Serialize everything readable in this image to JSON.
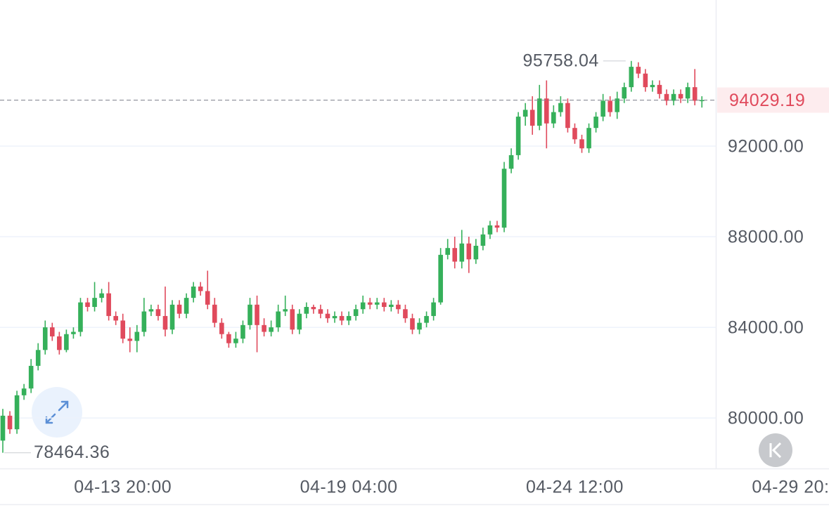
{
  "chart_data": {
    "type": "candlestick",
    "x": [
      "04-11 00:00",
      "04-11 04:00",
      "04-11 08:00",
      "04-11 12:00",
      "04-11 16:00",
      "04-11 20:00",
      "04-12 00:00",
      "04-12 04:00",
      "04-12 08:00",
      "04-12 12:00",
      "04-12 16:00",
      "04-12 20:00",
      "04-13 00:00",
      "04-13 04:00",
      "04-13 08:00",
      "04-13 12:00",
      "04-13 16:00",
      "04-13 20:00",
      "04-14 00:00",
      "04-14 04:00",
      "04-14 08:00",
      "04-14 12:00",
      "04-14 16:00",
      "04-14 20:00",
      "04-15 00:00",
      "04-15 04:00",
      "04-15 08:00",
      "04-15 12:00",
      "04-15 16:00",
      "04-15 20:00",
      "04-16 00:00",
      "04-16 04:00",
      "04-16 08:00",
      "04-16 12:00",
      "04-16 16:00",
      "04-16 20:00",
      "04-17 00:00",
      "04-17 04:00",
      "04-17 08:00",
      "04-17 12:00",
      "04-17 16:00",
      "04-17 20:00",
      "04-18 00:00",
      "04-18 04:00",
      "04-18 08:00",
      "04-18 12:00",
      "04-18 16:00",
      "04-18 20:00",
      "04-19 00:00",
      "04-19 04:00",
      "04-19 08:00",
      "04-19 12:00",
      "04-19 16:00",
      "04-19 20:00",
      "04-20 00:00",
      "04-20 04:00",
      "04-20 08:00",
      "04-20 12:00",
      "04-20 16:00",
      "04-20 20:00",
      "04-21 00:00",
      "04-21 04:00",
      "04-21 08:00",
      "04-21 12:00",
      "04-21 16:00",
      "04-21 20:00",
      "04-22 00:00",
      "04-22 04:00",
      "04-22 08:00",
      "04-22 12:00",
      "04-22 16:00",
      "04-22 20:00",
      "04-23 00:00",
      "04-23 04:00",
      "04-23 08:00",
      "04-23 12:00",
      "04-23 16:00",
      "04-23 20:00",
      "04-24 00:00",
      "04-24 04:00",
      "04-24 08:00",
      "04-24 12:00",
      "04-24 16:00",
      "04-24 20:00",
      "04-25 00:00",
      "04-25 04:00",
      "04-25 08:00",
      "04-25 12:00",
      "04-25 16:00",
      "04-25 20:00",
      "04-26 00:00",
      "04-26 04:00",
      "04-26 08:00",
      "04-26 12:00",
      "04-26 16:00",
      "04-26 20:00",
      "04-27 00:00",
      "04-27 04:00",
      "04-27 08:00",
      "04-27 12:00"
    ],
    "open": [
      79000,
      80100,
      79500,
      81000,
      81300,
      82300,
      83000,
      84000,
      83600,
      83000,
      83700,
      83800,
      85100,
      84900,
      85300,
      85500,
      84500,
      84300,
      83500,
      83400,
      83800,
      84700,
      84800,
      84500,
      83900,
      85000,
      84600,
      85300,
      85800,
      85600,
      85000,
      84200,
      83700,
      83300,
      83500,
      84100,
      85000,
      84100,
      83800,
      84000,
      84700,
      84800,
      83900,
      84600,
      84900,
      84800,
      84600,
      84400,
      84500,
      84300,
      84500,
      84800,
      85100,
      85000,
      85100,
      84900,
      85000,
      84800,
      84400,
      83900,
      84200,
      84500,
      85100,
      87200,
      87500,
      86900,
      87700,
      87000,
      87600,
      88100,
      88500,
      88400,
      91000,
      91600,
      93300,
      93600,
      92900,
      94100,
      93000,
      93500,
      93900,
      92800,
      92300,
      91900,
      92800,
      93300,
      94000,
      93500,
      94100,
      94600,
      95500,
      95200,
      94600,
      94700,
      94300,
      94000,
      94300,
      94100,
      94600,
      94000
    ],
    "high": [
      80400,
      80300,
      81200,
      81500,
      82600,
      83300,
      84300,
      84200,
      83800,
      83900,
      84000,
      85300,
      85300,
      86000,
      85700,
      86000,
      84700,
      84600,
      84000,
      84100,
      85300,
      85000,
      85000,
      85800,
      85200,
      85200,
      85500,
      86000,
      86000,
      86500,
      85300,
      84400,
      83800,
      83800,
      84300,
      85300,
      85400,
      84400,
      84300,
      85000,
      85400,
      85000,
      84800,
      85100,
      85000,
      85000,
      84800,
      84700,
      84700,
      84700,
      85000,
      85400,
      85300,
      85300,
      85300,
      85200,
      85200,
      85000,
      84600,
      84400,
      84700,
      85300,
      87500,
      87900,
      88000,
      88300,
      88000,
      87900,
      88400,
      88700,
      88700,
      91300,
      91900,
      93500,
      93900,
      94200,
      94700,
      94900,
      93800,
      94200,
      94100,
      93000,
      92500,
      93000,
      93500,
      94300,
      94200,
      94400,
      94800,
      95758.04,
      95700,
      95400,
      94900,
      94900,
      94500,
      94500,
      94500,
      94800,
      95400,
      94200
    ],
    "low": [
      78464.36,
      79300,
      79300,
      80800,
      81100,
      82100,
      82800,
      83400,
      82800,
      82900,
      83500,
      83600,
      84700,
      84700,
      85100,
      84300,
      84100,
      83300,
      82900,
      82900,
      83600,
      84500,
      84300,
      83600,
      83700,
      84400,
      84400,
      85100,
      85400,
      84800,
      84000,
      83500,
      83100,
      83100,
      83300,
      83900,
      82900,
      83600,
      83600,
      83800,
      84500,
      83700,
      83700,
      84400,
      84600,
      84400,
      84200,
      84200,
      84100,
      84100,
      84300,
      84600,
      84800,
      84800,
      84700,
      84700,
      84600,
      84200,
      83700,
      83700,
      84000,
      84300,
      85000,
      87000,
      86600,
      86600,
      86400,
      86800,
      87400,
      87900,
      88200,
      88200,
      90800,
      91400,
      92900,
      92500,
      92700,
      91900,
      92800,
      93300,
      92600,
      92100,
      91700,
      91700,
      92600,
      93100,
      93300,
      93200,
      93900,
      94400,
      95000,
      94400,
      94400,
      94100,
      93800,
      93800,
      93900,
      93900,
      93800,
      93700
    ],
    "close": [
      80100,
      79500,
      81000,
      81300,
      82300,
      83000,
      84000,
      83600,
      83000,
      83700,
      83800,
      85100,
      84900,
      85300,
      85500,
      84500,
      84300,
      83500,
      83400,
      83800,
      84700,
      84800,
      84500,
      83900,
      85000,
      84600,
      85300,
      85800,
      85600,
      85000,
      84200,
      83700,
      83300,
      83500,
      84100,
      85000,
      84100,
      83800,
      84000,
      84700,
      84800,
      83900,
      84600,
      84900,
      84800,
      84600,
      84400,
      84500,
      84300,
      84500,
      84800,
      85100,
      85000,
      85100,
      84900,
      85000,
      84800,
      84400,
      83900,
      84200,
      84500,
      85100,
      87200,
      87500,
      86900,
      87700,
      87000,
      87600,
      88100,
      88500,
      88400,
      91000,
      91600,
      93300,
      93600,
      92900,
      94100,
      93000,
      93500,
      93900,
      92800,
      92300,
      91900,
      92800,
      93300,
      94000,
      93500,
      94100,
      94600,
      95500,
      95200,
      94600,
      94700,
      94300,
      94000,
      94300,
      94100,
      94600,
      94000,
      94029.19
    ],
    "up_color": "#35b05a",
    "down_color": "#e04a5c",
    "xlim": [
      "04-11 00:00",
      "04-30 12:00"
    ],
    "xticks": [
      "04-13 20:00",
      "04-19 04:00",
      "04-24 12:00",
      "04-29 20:00"
    ],
    "ylim": [
      77771,
      98448
    ],
    "yticks": [
      {
        "value": 80000,
        "label": "80000.00"
      },
      {
        "value": 84000,
        "label": "84000.00"
      },
      {
        "value": 88000,
        "label": "88000.00"
      },
      {
        "value": 92000,
        "label": "92000.00"
      }
    ],
    "grid": true
  }
}
